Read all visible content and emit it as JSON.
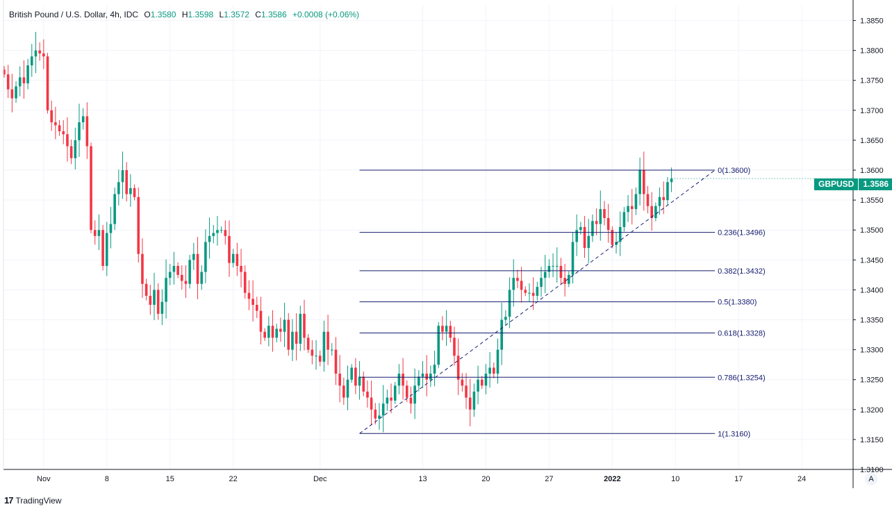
{
  "legend": {
    "symbol": "British Pound / U.S. Dollar, 4h, IDC",
    "open_label": "O",
    "open": "1.3580",
    "high_label": "H",
    "high": "1.3598",
    "low_label": "L",
    "low": "1.3572",
    "close_label": "C",
    "close": "1.3586",
    "change": "+0.0008 (+0.06%)"
  },
  "badge": {
    "symbol": "GBPUSD",
    "price": "1.3586"
  },
  "auto_button": "A",
  "logo": {
    "mark": "17",
    "text": "TradingView"
  },
  "colors": {
    "up": "#089981",
    "down": "#f23645",
    "fib": "#131b6e",
    "grid": "#f0f3fa",
    "axis": "#131722"
  },
  "chart_data": {
    "type": "candlestick",
    "symbol": "GBPUSD",
    "timeframe": "4h",
    "y_axis": {
      "ylim": [
        1.31,
        1.3875
      ],
      "ticks": [
        "1.3850",
        "1.3800",
        "1.3750",
        "1.3700",
        "1.3650",
        "1.3600",
        "1.3550",
        "1.3500",
        "1.3450",
        "1.3400",
        "1.3350",
        "1.3300",
        "1.3250",
        "1.3200",
        "1.3150",
        "1.3100"
      ]
    },
    "x_axis": {
      "ticks": [
        {
          "label": "Nov",
          "i": 10
        },
        {
          "label": "8",
          "i": 26
        },
        {
          "label": "15",
          "i": 42
        },
        {
          "label": "22",
          "i": 58
        },
        {
          "label": "Dec",
          "i": 80
        },
        {
          "label": "13",
          "i": 106
        },
        {
          "label": "20",
          "i": 122
        },
        {
          "label": "27",
          "i": 138
        },
        {
          "label": "2022",
          "i": 154,
          "bold": true
        },
        {
          "label": "10",
          "i": 170
        },
        {
          "label": "17",
          "i": 186
        },
        {
          "label": "24",
          "i": 202
        }
      ]
    },
    "closes": [
      1.376,
      1.3735,
      1.372,
      1.374,
      1.3755,
      1.3745,
      1.3775,
      1.379,
      1.38,
      1.3795,
      1.379,
      1.37,
      1.368,
      1.3675,
      1.3665,
      1.366,
      1.364,
      1.362,
      1.365,
      1.368,
      1.369,
      1.364,
      1.35,
      1.349,
      1.35,
      1.344,
      1.3495,
      1.351,
      1.356,
      1.358,
      1.36,
      1.356,
      1.357,
      1.3555,
      1.346,
      1.341,
      1.339,
      1.3375,
      1.34,
      1.336,
      1.338,
      1.342,
      1.343,
      1.344,
      1.3425,
      1.3415,
      1.341,
      1.345,
      1.346,
      1.341,
      1.343,
      1.348,
      1.349,
      1.3495,
      1.35,
      1.35,
      1.349,
      1.3445,
      1.346,
      1.344,
      1.343,
      1.3395,
      1.3385,
      1.3375,
      1.3365,
      1.333,
      1.332,
      1.334,
      1.332,
      1.3335,
      1.333,
      1.335,
      1.33,
      1.333,
      1.331,
      1.336,
      1.332,
      1.33,
      1.329,
      1.329,
      1.328,
      1.333,
      1.33,
      1.33,
      1.326,
      1.324,
      1.322,
      1.325,
      1.327,
      1.324,
      1.3255,
      1.323,
      1.322,
      1.32,
      1.3185,
      1.319,
      1.321,
      1.322,
      1.3215,
      1.324,
      1.326,
      1.324,
      1.322,
      1.321,
      1.324,
      1.3255,
      1.326,
      1.325,
      1.326,
      1.3275,
      1.334,
      1.333,
      1.334,
      1.332,
      1.329,
      1.325,
      1.324,
      1.322,
      1.32,
      1.323,
      1.325,
      1.324,
      1.326,
      1.327,
      1.326,
      1.33,
      1.335,
      1.3355,
      1.34,
      1.342,
      1.3415,
      1.34,
      1.3395,
      1.3395,
      1.339,
      1.3405,
      1.342,
      1.343,
      1.344,
      1.344,
      1.344,
      1.342,
      1.341,
      1.3425,
      1.348,
      1.35,
      1.3505,
      1.347,
      1.349,
      1.3515,
      1.351,
      1.3535,
      1.352,
      1.35,
      1.3475,
      1.348,
      1.3505,
      1.353,
      1.354,
      1.3535,
      1.356,
      1.36,
      1.356,
      1.354,
      1.352,
      1.354,
      1.3555,
      1.355,
      1.358,
      1.3586
    ],
    "fibonacci": [
      {
        "label": "0(1.3600)",
        "level": 1.36
      },
      {
        "label": "0.236(1.3496)",
        "level": 1.3496
      },
      {
        "label": "0.382(1.3432)",
        "level": 1.3432
      },
      {
        "label": "0.5(1.3380)",
        "level": 1.338
      },
      {
        "label": "0.618(1.3328)",
        "level": 1.3328
      },
      {
        "label": "0.786(1.3254)",
        "level": 1.3254
      },
      {
        "label": "1(1.3160)",
        "level": 1.316
      }
    ],
    "fib_range": {
      "start_i": 90,
      "end_i": 180
    },
    "trend_line": {
      "from": {
        "i": 90,
        "price": 1.316
      },
      "to": {
        "i": 180,
        "price": 1.36
      }
    },
    "last_price": 1.3586
  }
}
